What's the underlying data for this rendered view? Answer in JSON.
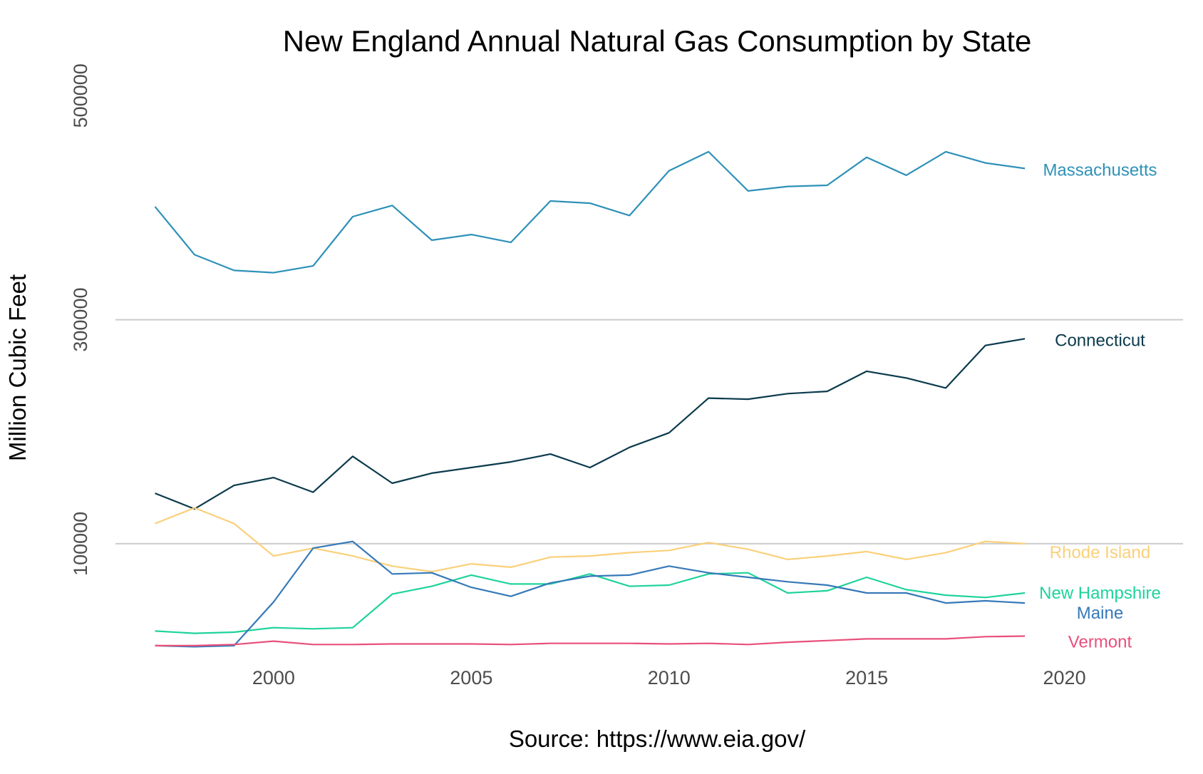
{
  "chart_data": {
    "type": "line",
    "title": "New England Annual Natural Gas Consumption by State",
    "xlabel": "Source: https://www.eia.gov/",
    "ylabel": "Million Cubic Feet",
    "xlim": [
      1996,
      2023
    ],
    "ylim": [
      0,
      560000
    ],
    "x_ticks": [
      2000,
      2005,
      2010,
      2015,
      2020
    ],
    "x_tick_labels": [
      "2000",
      "2005",
      "2010",
      "2015",
      "2020"
    ],
    "y_ticks": [
      100000,
      300000,
      500000
    ],
    "y_tick_labels": [
      "100000",
      "300000",
      "500000"
    ],
    "y_gridlines": [
      100000,
      300000
    ],
    "legend": "direct labels at right end of each line",
    "x": [
      1997,
      1998,
      1999,
      2000,
      2001,
      2002,
      2003,
      2004,
      2005,
      2006,
      2007,
      2008,
      2009,
      2010,
      2011,
      2012,
      2013,
      2014,
      2015,
      2016,
      2017,
      2018,
      2019
    ],
    "series": [
      {
        "name": "Massachusetts",
        "label": "Massachusetts",
        "color": "#2E91B8",
        "values": [
          401000,
          358000,
          344000,
          342000,
          348000,
          392000,
          402000,
          371000,
          376000,
          369000,
          406000,
          404000,
          393000,
          433000,
          450000,
          415000,
          419000,
          420000,
          445000,
          429000,
          450000,
          440000,
          435000
        ]
      },
      {
        "name": "Connecticut",
        "label": "Connecticut",
        "color": "#0B3A4C",
        "values": [
          145000,
          131000,
          152000,
          159000,
          146000,
          178000,
          154000,
          163000,
          168000,
          173000,
          180000,
          168000,
          186000,
          199000,
          230000,
          229000,
          234000,
          236000,
          254000,
          248000,
          239000,
          277000,
          283000
        ]
      },
      {
        "name": "Rhode Island",
        "label": "Rhode Island",
        "color": "#FAD07A",
        "values": [
          118000,
          132000,
          118000,
          89000,
          96000,
          89000,
          80000,
          75000,
          82000,
          79000,
          88000,
          89000,
          92000,
          94000,
          101000,
          95000,
          86000,
          89000,
          93000,
          86000,
          92000,
          102000,
          100000
        ]
      },
      {
        "name": "New Hampshire",
        "label": "New Hampshire",
        "color": "#1FD39B",
        "values": [
          22000,
          20000,
          21000,
          25000,
          24000,
          25000,
          55000,
          62000,
          72000,
          64000,
          64000,
          73000,
          62000,
          63000,
          73000,
          74000,
          56000,
          58000,
          70000,
          59000,
          54000,
          52000,
          56000
        ]
      },
      {
        "name": "Maine",
        "label": "Maine",
        "color": "#3679B8",
        "values": [
          9000,
          8000,
          9000,
          48000,
          96000,
          102000,
          73000,
          74000,
          61000,
          53000,
          65000,
          71000,
          72000,
          80000,
          74000,
          70000,
          66000,
          63000,
          56000,
          56000,
          47000,
          49000,
          47000
        ]
      },
      {
        "name": "Vermont",
        "label": "Vermont",
        "color": "#E8507A",
        "values": [
          9000,
          9000,
          10000,
          13000,
          10000,
          10000,
          10500,
          10500,
          10500,
          10000,
          11000,
          11000,
          11000,
          10500,
          11000,
          10000,
          12000,
          13500,
          15000,
          15000,
          15000,
          17000,
          17500
        ]
      }
    ]
  }
}
